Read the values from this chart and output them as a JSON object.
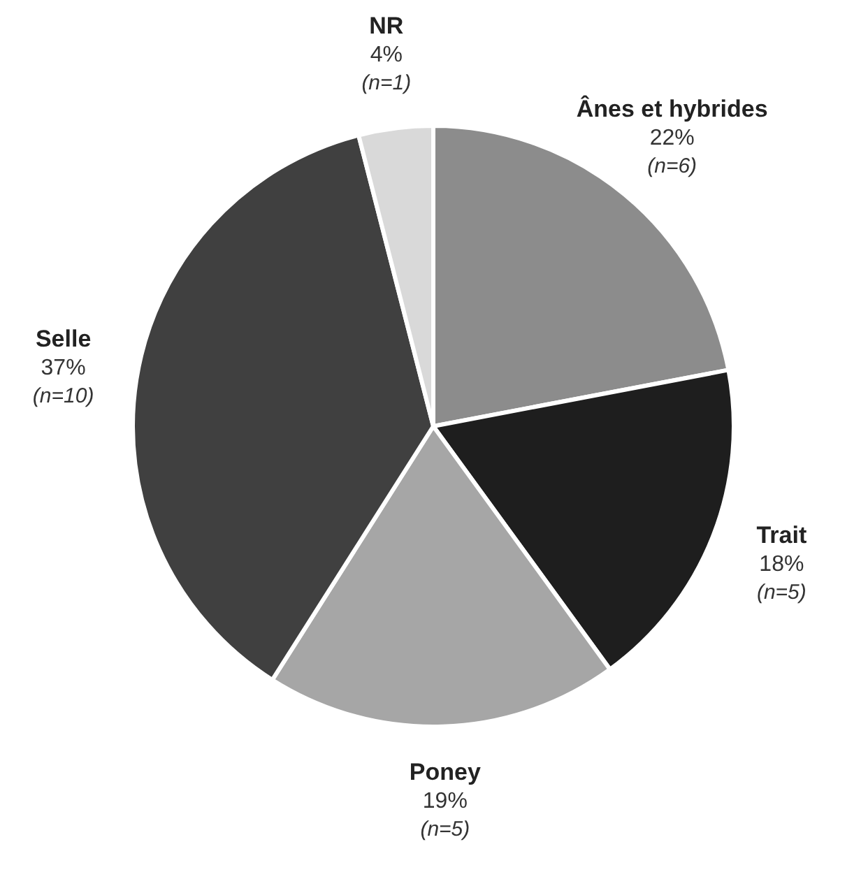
{
  "chart_data": {
    "type": "pie",
    "categories": [
      "Ânes et hybrides",
      "Trait",
      "Poney",
      "Selle",
      "NR"
    ],
    "values": [
      22,
      18,
      19,
      37,
      4
    ],
    "value_labels": [
      "22%",
      "18%",
      "19%",
      "37%",
      "4%"
    ],
    "colors": [
      "#8c8c8c",
      "#1e1e1e",
      "#a6a6a6",
      "#404040",
      "#d9d9d9"
    ],
    "annotations": [
      "(n=6)",
      "(n=5)",
      "(n=5)",
      "(n=10)",
      "(n=1)"
    ],
    "legend": false
  }
}
